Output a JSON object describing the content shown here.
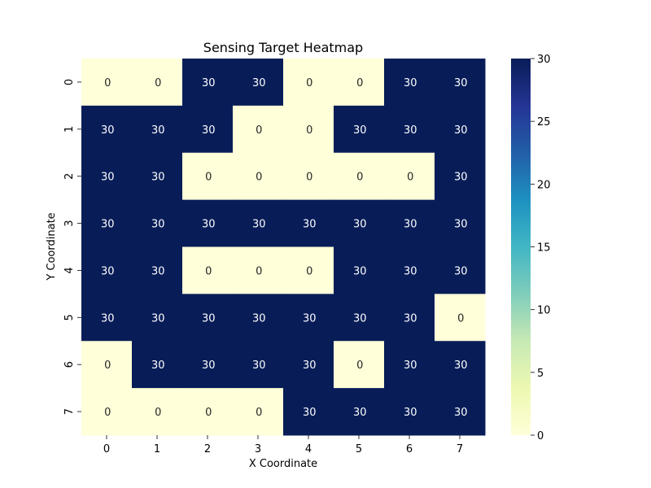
{
  "chart_data": {
    "type": "heatmap",
    "title": "Sensing Target Heatmap",
    "xlabel": "X Coordinate",
    "ylabel": "Y Coordinate",
    "x_categories": [
      "0",
      "1",
      "2",
      "3",
      "4",
      "5",
      "6",
      "7"
    ],
    "y_categories": [
      "0",
      "1",
      "2",
      "3",
      "4",
      "5",
      "6",
      "7"
    ],
    "values": [
      [
        0,
        0,
        30,
        30,
        0,
        0,
        30,
        30
      ],
      [
        30,
        30,
        30,
        0,
        0,
        30,
        30,
        30
      ],
      [
        30,
        30,
        0,
        0,
        0,
        0,
        0,
        30
      ],
      [
        30,
        30,
        30,
        30,
        30,
        30,
        30,
        30
      ],
      [
        30,
        30,
        0,
        0,
        0,
        30,
        30,
        30
      ],
      [
        30,
        30,
        30,
        30,
        30,
        30,
        30,
        0
      ],
      [
        0,
        30,
        30,
        30,
        30,
        0,
        30,
        30
      ],
      [
        0,
        0,
        0,
        0,
        30,
        30,
        30,
        30
      ]
    ],
    "colormap": "YlGnBu",
    "vmin": 0,
    "vmax": 30,
    "colorbar_ticks": [
      "0",
      "5",
      "10",
      "15",
      "20",
      "25",
      "30"
    ],
    "annotations": true
  }
}
